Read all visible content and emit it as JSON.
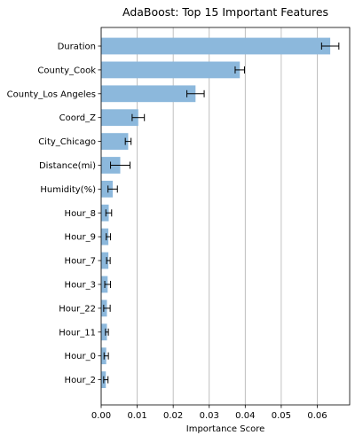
{
  "chart_data": {
    "type": "bar",
    "orientation": "horizontal",
    "title": "AdaBoost: Top 15 Important Features",
    "xlabel": "Importance Score",
    "ylabel": "",
    "xlim": [
      0,
      0.069
    ],
    "grid": "vertical",
    "bar_color": "#8cb8dc",
    "error_color": "#000000",
    "xticks": [
      "0.00",
      "0.01",
      "0.02",
      "0.03",
      "0.04",
      "0.05",
      "0.06"
    ],
    "xtick_values": [
      0,
      0.01,
      0.02,
      0.03,
      0.04,
      0.05,
      0.06
    ],
    "categories": [
      "Duration",
      "County_Cook",
      "County_Los Angeles",
      "Coord_Z",
      "City_Chicago",
      "Distance(mi)",
      "Humidity(%)",
      "Hour_8",
      "Hour_9",
      "Hour_7",
      "Hour_3",
      "Hour_22",
      "Hour_11",
      "Hour_0",
      "Hour_2"
    ],
    "values": [
      0.0636,
      0.0385,
      0.0262,
      0.0103,
      0.0075,
      0.0053,
      0.0032,
      0.0021,
      0.002,
      0.002,
      0.0018,
      0.0016,
      0.0016,
      0.0014,
      0.0013
    ],
    "errors": [
      0.0024,
      0.0013,
      0.0024,
      0.0017,
      0.0008,
      0.0027,
      0.0013,
      0.0008,
      0.0006,
      0.0005,
      0.0008,
      0.0009,
      0.0004,
      0.0006,
      0.0006
    ]
  }
}
